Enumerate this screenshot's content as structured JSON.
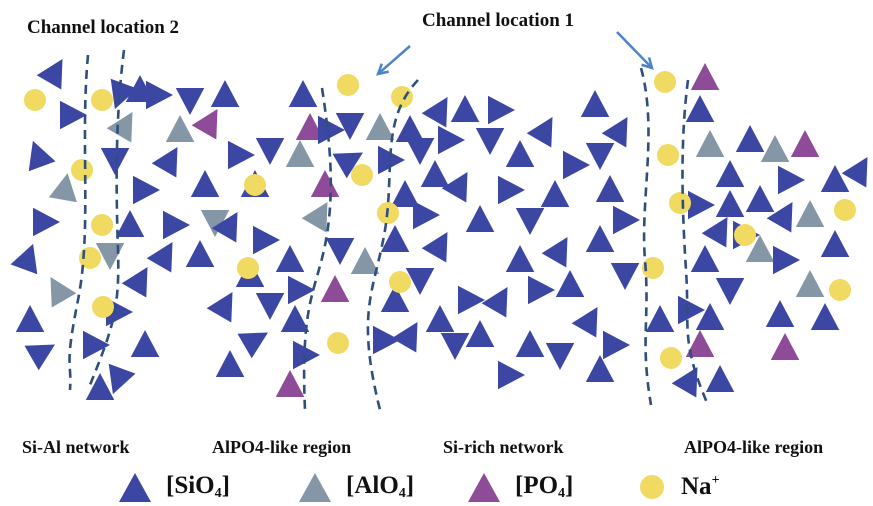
{
  "labels": {
    "channel_2": "Channel location 2",
    "channel_1": "Channel location 1"
  },
  "regions": [
    "Si-Al network",
    "AlPO4-like region",
    "Si-rich network",
    "AlPO4-like region"
  ],
  "legend": [
    {
      "name": "SiO4",
      "prefix": "[SiO",
      "sub": "4",
      "suffix": "]",
      "color": "#3c47a3",
      "shape": "triangle"
    },
    {
      "name": "AlO4",
      "prefix": "[AlO",
      "sub": "4",
      "suffix": "]",
      "color": "#8596a6",
      "shape": "triangle"
    },
    {
      "name": "PO4",
      "prefix": "[PO",
      "sub": "4",
      "suffix": "]",
      "color": "#8e4b97",
      "shape": "triangle"
    },
    {
      "name": "Na+",
      "prefix": "Na",
      "sup": "+",
      "color": "#f0da62",
      "shape": "circle"
    }
  ],
  "colors": {
    "sio4": "#3c47a3",
    "alo4": "#8596a6",
    "po4": "#8e4b97",
    "na": "#f0da62",
    "channel_line": "#2e4e7e",
    "arrow": "#4b84c8"
  }
}
